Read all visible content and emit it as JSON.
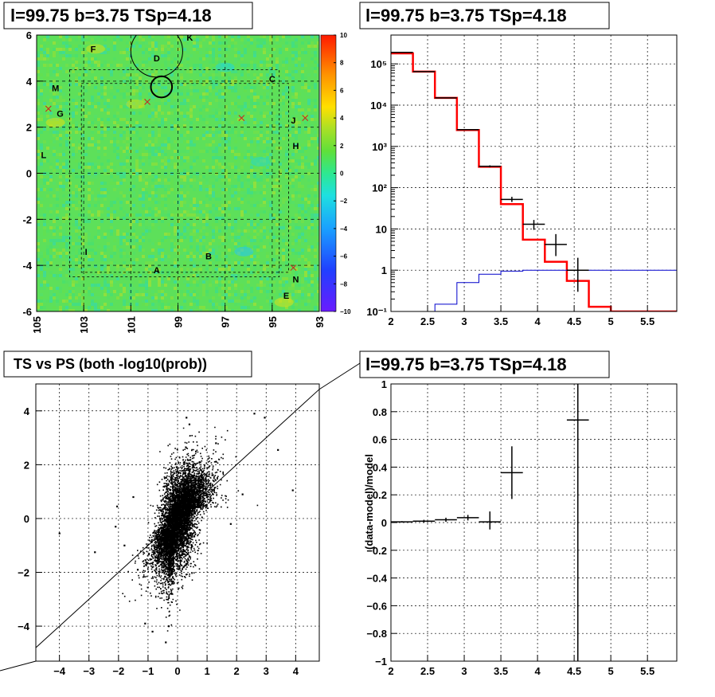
{
  "chart_data": [
    {
      "panel": "sky_map",
      "type": "heatmap",
      "title": "l=99.75 b=3.75 TSp=4.18",
      "xlim": [
        105,
        93
      ],
      "ylim": [
        -6,
        6
      ],
      "x_ticks": [
        "105",
        "103",
        "101",
        "99",
        "97",
        "95",
        "93"
      ],
      "y_ticks": [
        "6",
        "4",
        "2",
        "0",
        "-2",
        "-4",
        "-6"
      ],
      "colorbar": {
        "min": -10,
        "max": 10,
        "ticks": [
          "10",
          "8",
          "6",
          "4",
          "2",
          "0",
          "−2",
          "−4",
          "−6",
          "−8",
          "−10"
        ]
      },
      "grid": true,
      "labels": [
        {
          "text": "F",
          "l": 102.6,
          "b": 5.4
        },
        {
          "text": "D",
          "l": 99.9,
          "b": 5.0
        },
        {
          "text": "K",
          "l": 98.5,
          "b": 5.9
        },
        {
          "text": "C",
          "l": 95.0,
          "b": 4.1
        },
        {
          "text": "M",
          "l": 104.2,
          "b": 3.7
        },
        {
          "text": "G",
          "l": 104.0,
          "b": 2.6
        },
        {
          "text": "J",
          "l": 94.1,
          "b": 2.3
        },
        {
          "text": "H",
          "l": 94.0,
          "b": 1.2
        },
        {
          "text": "L",
          "l": 104.7,
          "b": 0.8
        },
        {
          "text": "I",
          "l": 102.9,
          "b": -3.4
        },
        {
          "text": "B",
          "l": 97.7,
          "b": -3.6
        },
        {
          "text": "A",
          "l": 99.9,
          "b": -4.2
        },
        {
          "text": "N",
          "l": 94.0,
          "b": -4.6
        },
        {
          "text": "E",
          "l": 94.4,
          "b": -5.3
        }
      ],
      "crosses": [
        {
          "l": 104.5,
          "b": 2.8
        },
        {
          "l": 100.3,
          "b": 3.1
        },
        {
          "l": 96.3,
          "b": 2.4
        },
        {
          "l": 93.6,
          "b": 2.4
        },
        {
          "l": 94.1,
          "b": -4.1
        }
      ],
      "circles": [
        {
          "l": 99.9,
          "b": 5.3,
          "r": 1.1,
          "weight": "thin"
        },
        {
          "l": 99.7,
          "b": 3.75,
          "r": 0.45,
          "weight": "thick"
        }
      ],
      "dashed_boxes": [
        {
          "l1": 103.6,
          "l2": 94.7,
          "b1": -4.5,
          "b2": 4.5
        },
        {
          "l1": 103.1,
          "l2": 94.3,
          "b1": -4.3,
          "b2": 3.9
        }
      ],
      "colors": {
        "bg": "#5de05a",
        "hot": "#ff2a00",
        "cold": "#6a1bff"
      }
    },
    {
      "panel": "histogram",
      "type": "line",
      "title": "l=99.75 b=3.75 TSp=4.18",
      "xlim": [
        2,
        5.9
      ],
      "ylim": [
        0.1,
        500000
      ],
      "yscale": "log",
      "x_ticks": [
        "2",
        "2.5",
        "3",
        "3.5",
        "4",
        "4.5",
        "5",
        "5.5"
      ],
      "y_ticks": [
        "10⁻¹",
        "1",
        "10",
        "10²",
        "10³",
        "10⁴",
        "10⁵"
      ],
      "grid": true,
      "edges": [
        2.0,
        2.3,
        2.6,
        2.9,
        3.2,
        3.5,
        3.8,
        4.1,
        4.4,
        4.7,
        5.0,
        5.9
      ],
      "series": [
        {
          "color": "#ff0000",
          "values": [
            180000,
            65000,
            15000,
            2500,
            320,
            40,
            5.5,
            1.6,
            0.55,
            0.13,
            0.1
          ]
        },
        {
          "color": "#0000cc",
          "values": [
            0.1,
            0.1,
            0.15,
            0.5,
            0.8,
            0.95,
            1.0,
            1.0,
            1.0,
            1.0,
            1.0
          ]
        }
      ],
      "data_points": [
        {
          "x": 2.15,
          "y": 190000,
          "xerr": 0.15,
          "ylo": 189500,
          "yhi": 190500
        },
        {
          "x": 2.45,
          "y": 65000,
          "xerr": 0.15,
          "ylo": 64700,
          "yhi": 65300
        },
        {
          "x": 2.75,
          "y": 15000,
          "xerr": 0.15,
          "ylo": 14880,
          "yhi": 15120
        },
        {
          "x": 3.05,
          "y": 2550,
          "xerr": 0.15,
          "ylo": 2500,
          "yhi": 2600
        },
        {
          "x": 3.35,
          "y": 330,
          "xerr": 0.15,
          "ylo": 312,
          "yhi": 348
        },
        {
          "x": 3.65,
          "y": 52,
          "xerr": 0.15,
          "ylo": 45,
          "yhi": 60
        },
        {
          "x": 3.95,
          "y": 13,
          "xerr": 0.15,
          "ylo": 9.5,
          "yhi": 16.5
        },
        {
          "x": 4.25,
          "y": 4.2,
          "xerr": 0.15,
          "ylo": 2.2,
          "yhi": 7.5
        },
        {
          "x": 4.55,
          "y": 1.0,
          "xerr": 0.15,
          "ylo": 0.3,
          "yhi": 2.0
        }
      ]
    },
    {
      "panel": "ts_vs_ps",
      "type": "scatter",
      "title": "TS vs PS (both -log10(prob))",
      "xlim": [
        -4.8,
        4.8
      ],
      "ylim": [
        -5.3,
        5.0
      ],
      "x_ticks": [
        "−4",
        "−3",
        "−2",
        "−1",
        "0",
        "1",
        "2",
        "3",
        "4"
      ],
      "y_ticks": [
        "4",
        "2",
        "0",
        "−2",
        "−4"
      ],
      "grid": true,
      "diagonal": {
        "x1": -6.2,
        "y1": -6.2,
        "x2": 6.2,
        "y2": 6.2
      },
      "outliers": [
        [
          -4.0,
          -0.55
        ],
        [
          -2.8,
          -1.25
        ],
        [
          -2.1,
          -0.3
        ],
        [
          -2.05,
          0.45
        ],
        [
          -1.35,
          -1.9
        ],
        [
          -1.1,
          -3.9
        ],
        [
          -0.3,
          -4.0
        ],
        [
          -0.4,
          -4.6
        ],
        [
          -0.85,
          -4.2
        ],
        [
          0.3,
          3.75
        ],
        [
          0.4,
          3.5
        ],
        [
          2.6,
          3.9
        ],
        [
          2.95,
          3.75
        ],
        [
          3.4,
          2.55
        ],
        [
          3.9,
          1.05
        ],
        [
          -1.5,
          0.8
        ],
        [
          2.2,
          0.9
        ],
        [
          1.8,
          -0.2
        ],
        [
          -1.8,
          -1.0
        ],
        [
          1.3,
          2.8
        ]
      ],
      "cluster": {
        "n": 7000,
        "seed": 7
      }
    },
    {
      "panel": "residuals",
      "type": "scatter",
      "title": "l=99.75 b=3.75 TSp=4.18",
      "xlim": [
        2,
        5.9
      ],
      "ylim": [
        -1,
        1
      ],
      "x_ticks": [
        "2",
        "2.5",
        "3",
        "3.5",
        "4",
        "4.5",
        "5",
        "5.5"
      ],
      "y_ticks": [
        "1",
        "0.8",
        "0.6",
        "0.4",
        "0.2",
        "0",
        "−0.2",
        "−0.4",
        "−0.6",
        "−0.8",
        "−1"
      ],
      "ylabel": "(data-model)/model",
      "grid": true,
      "data_points": [
        {
          "x": 2.15,
          "y": 0.005,
          "xerr": 0.15,
          "ylo": 0.0,
          "yhi": 0.01
        },
        {
          "x": 2.45,
          "y": 0.01,
          "xerr": 0.15,
          "ylo": 0.0,
          "yhi": 0.02
        },
        {
          "x": 2.75,
          "y": 0.02,
          "xerr": 0.15,
          "ylo": 0.005,
          "yhi": 0.035
        },
        {
          "x": 3.05,
          "y": 0.035,
          "xerr": 0.15,
          "ylo": 0.015,
          "yhi": 0.055
        },
        {
          "x": 3.35,
          "y": 0.005,
          "xerr": 0.15,
          "ylo": -0.05,
          "yhi": 0.08
        },
        {
          "x": 3.65,
          "y": 0.36,
          "xerr": 0.15,
          "ylo": 0.17,
          "yhi": 0.55
        },
        {
          "x": 4.55,
          "y": 0.74,
          "xerr": 0.15,
          "ylo": -1.05,
          "yhi": 1.05
        }
      ]
    }
  ]
}
